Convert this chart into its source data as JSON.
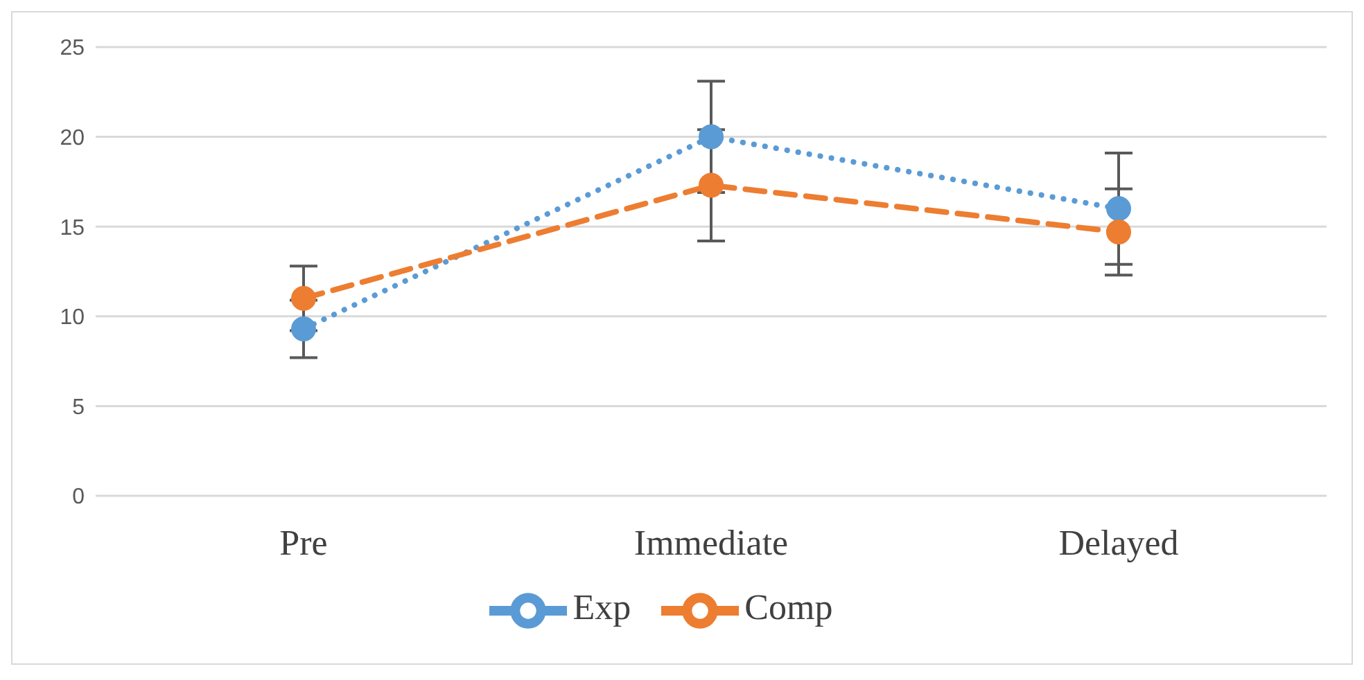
{
  "chart_data": {
    "type": "line",
    "categories": [
      "Pre",
      "Immediate",
      "Delayed"
    ],
    "series": [
      {
        "name": "Exp",
        "color": "#5b9bd5",
        "values": [
          9.3,
          20.0,
          16.0
        ],
        "errors": [
          1.6,
          3.1,
          3.1
        ],
        "line_style": "dotted"
      },
      {
        "name": "Comp",
        "color": "#ed7d31",
        "values": [
          11.0,
          17.3,
          14.7
        ],
        "errors": [
          1.8,
          3.1,
          2.4
        ],
        "line_style": "dashed"
      }
    ],
    "ylim": [
      0,
      25
    ],
    "yticks": [
      0,
      5,
      10,
      15,
      20,
      25
    ],
    "grid": "y",
    "legend": "bottom",
    "marker": "circle"
  }
}
